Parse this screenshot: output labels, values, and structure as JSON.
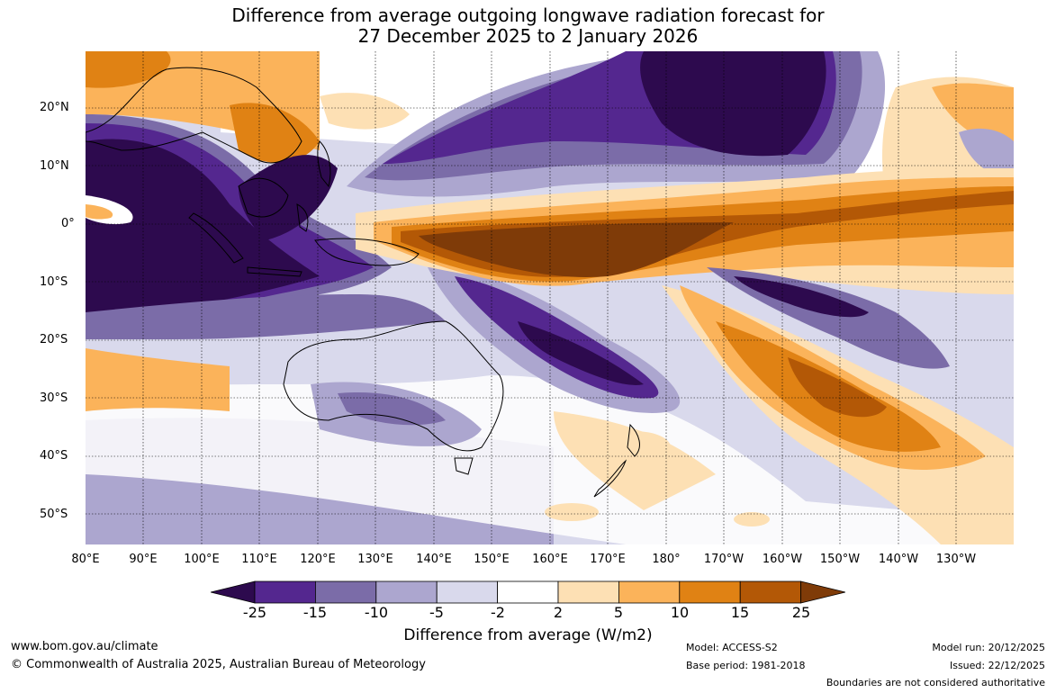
{
  "title": {
    "line1": "Difference from average outgoing longwave radiation forecast for",
    "line2": "27 December 2025 to 2 January 2026"
  },
  "axes": {
    "lat_labels": [
      "20°N",
      "10°N",
      "0°",
      "10°S",
      "20°S",
      "30°S",
      "40°S",
      "50°S"
    ],
    "lon_labels": [
      "80°E",
      "90°E",
      "100°E",
      "110°E",
      "120°E",
      "130°E",
      "140°E",
      "150°E",
      "160°E",
      "170°E",
      "180°",
      "170°W",
      "160°W",
      "150°W",
      "140°W",
      "130°W"
    ]
  },
  "colorbar": {
    "title": "Difference from average (W/m2)",
    "ticks": [
      "-25",
      "-15",
      "-10",
      "-5",
      "-2",
      "2",
      "5",
      "10",
      "15",
      "25"
    ],
    "colors": {
      "lt_neg25": "#2d0a4e",
      "neg25_neg15": "#54278f",
      "neg15_neg10": "#7b6ca8",
      "neg10_neg5": "#aca6cf",
      "neg5_neg2": "#d9d9ec",
      "neg2_2": "#ffffff",
      "pos2_5": "#fde0b4",
      "pos5_10": "#fbb35a",
      "pos10_15": "#e08214",
      "pos15_25": "#b35806",
      "gt_25": "#7f3b08"
    }
  },
  "footer": {
    "url": "www.bom.gov.au/climate",
    "copyright": "© Commonwealth of Australia 2025, Australian Bureau of Meteorology",
    "model": "Model: ACCESS-S2",
    "base_period": "Base period: 1981-2018",
    "model_run": "Model run: 20/12/2025",
    "issued": "Issued: 22/12/2025",
    "disclaimer": "Boundaries are not considered authoritative"
  }
}
